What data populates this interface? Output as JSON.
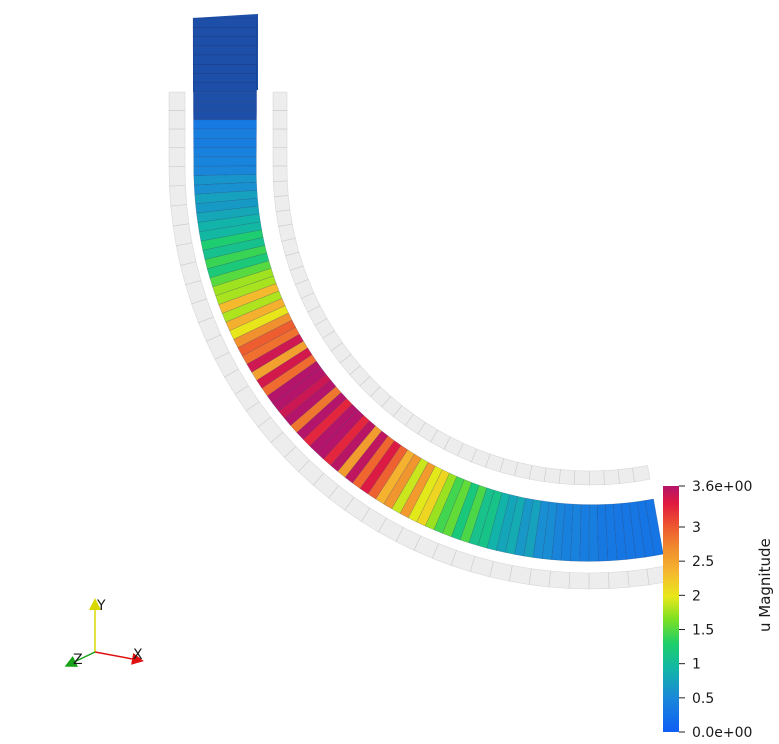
{
  "colorbar": {
    "title": "u Magnitude",
    "min": 0.0,
    "max": 3.6,
    "ticks": [
      {
        "value": 3.6,
        "label": "3.6e+00"
      },
      {
        "value": 3.0,
        "label": "3"
      },
      {
        "value": 2.5,
        "label": "2.5"
      },
      {
        "value": 2.0,
        "label": "2"
      },
      {
        "value": 1.5,
        "label": "1.5"
      },
      {
        "value": 1.0,
        "label": "1"
      },
      {
        "value": 0.5,
        "label": "0.5"
      },
      {
        "value": 0.0,
        "label": "0.0e+00"
      }
    ],
    "colors": [
      "#0f5ef5",
      "#1a88d8",
      "#12b7a6",
      "#1ecf6a",
      "#7ee022",
      "#e8e81a",
      "#f5b72e",
      "#f08a2e",
      "#ee5530",
      "#e01a40",
      "#b4146a"
    ]
  },
  "axes": {
    "x": {
      "label": "X",
      "color": "#ff2020"
    },
    "y": {
      "label": "Y",
      "color": "#e8e800"
    },
    "z": {
      "label": "Z",
      "color": "#22bb22"
    }
  },
  "scene": {
    "background": "#ffffff",
    "body_color": "#1e4fa8",
    "ghost_color": "#d7d7d7"
  }
}
